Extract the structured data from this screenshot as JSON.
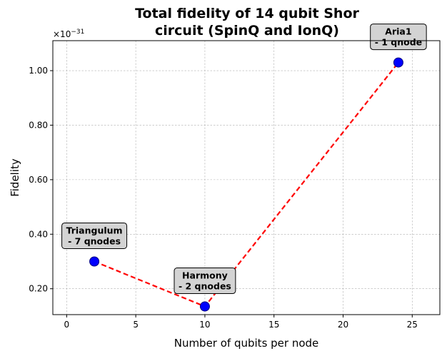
{
  "chart_data": {
    "type": "line",
    "title": [
      "Total fidelity of 14 qubit Shor",
      "circuit (SpinQ and IonQ)"
    ],
    "xlabel": "Number of qubits per node",
    "ylabel": "Fidelity",
    "scale_factor_text": "×10",
    "scale_exponent_text": "−31",
    "xlim": [
      -1,
      27
    ],
    "ylim": [
      0.105,
      1.11
    ],
    "xticks": [
      0,
      5,
      10,
      15,
      20,
      25
    ],
    "xtick_labels": [
      "0",
      "5",
      "10",
      "15",
      "20",
      "25"
    ],
    "yticks": [
      0.2,
      0.4,
      0.6,
      0.8,
      1.0
    ],
    "ytick_labels": [
      "0.20",
      "0.40",
      "0.60",
      "0.80",
      "1.00"
    ],
    "grid": true,
    "series": [
      {
        "x": [
          2,
          10,
          24
        ],
        "y": [
          0.3,
          0.135,
          1.03
        ],
        "line_color": "#ff0000",
        "line_style": "dashed",
        "marker_color": "#0000ff",
        "marker_edge": "#000080"
      }
    ],
    "annotations": [
      {
        "lines": [
          "Triangulum",
          "- 7 qnodes"
        ]
      },
      {
        "lines": [
          "Harmony",
          "- 2 qnodes"
        ]
      },
      {
        "lines": [
          "Aria1",
          "- 1 qnode"
        ]
      }
    ]
  }
}
